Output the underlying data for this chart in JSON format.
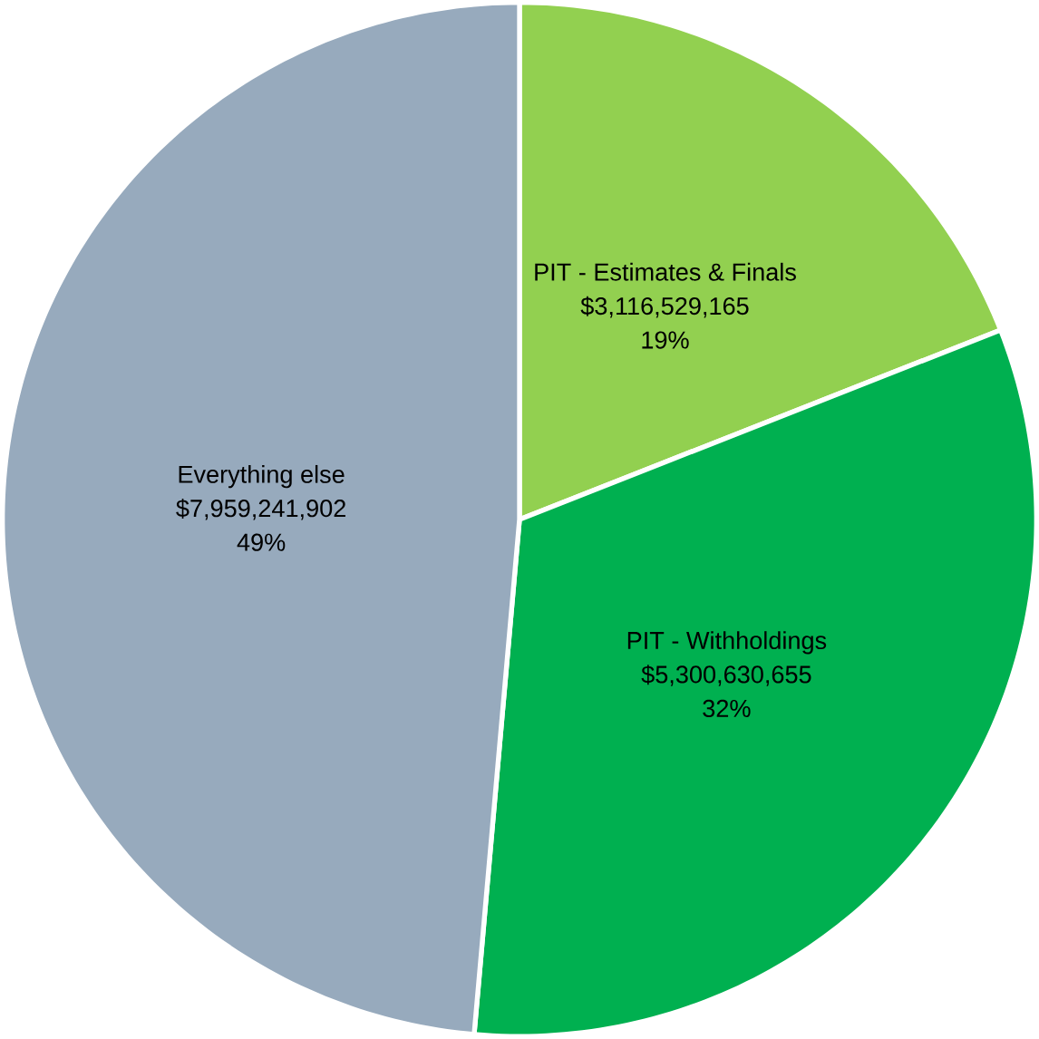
{
  "chart_data": {
    "type": "pie",
    "categories": [
      "PIT - Estimates & Finals",
      "PIT - Withholdings",
      "Everything else"
    ],
    "values": [
      3116529165,
      5300630655,
      7959241902
    ],
    "value_labels": [
      "$3,116,529,165",
      "$5,300,630,655",
      "$7,959,241,902"
    ],
    "annotations": [
      "19%",
      "32%",
      "49%"
    ],
    "colors": [
      "#92d050",
      "#00b050",
      "#97aabd"
    ]
  }
}
